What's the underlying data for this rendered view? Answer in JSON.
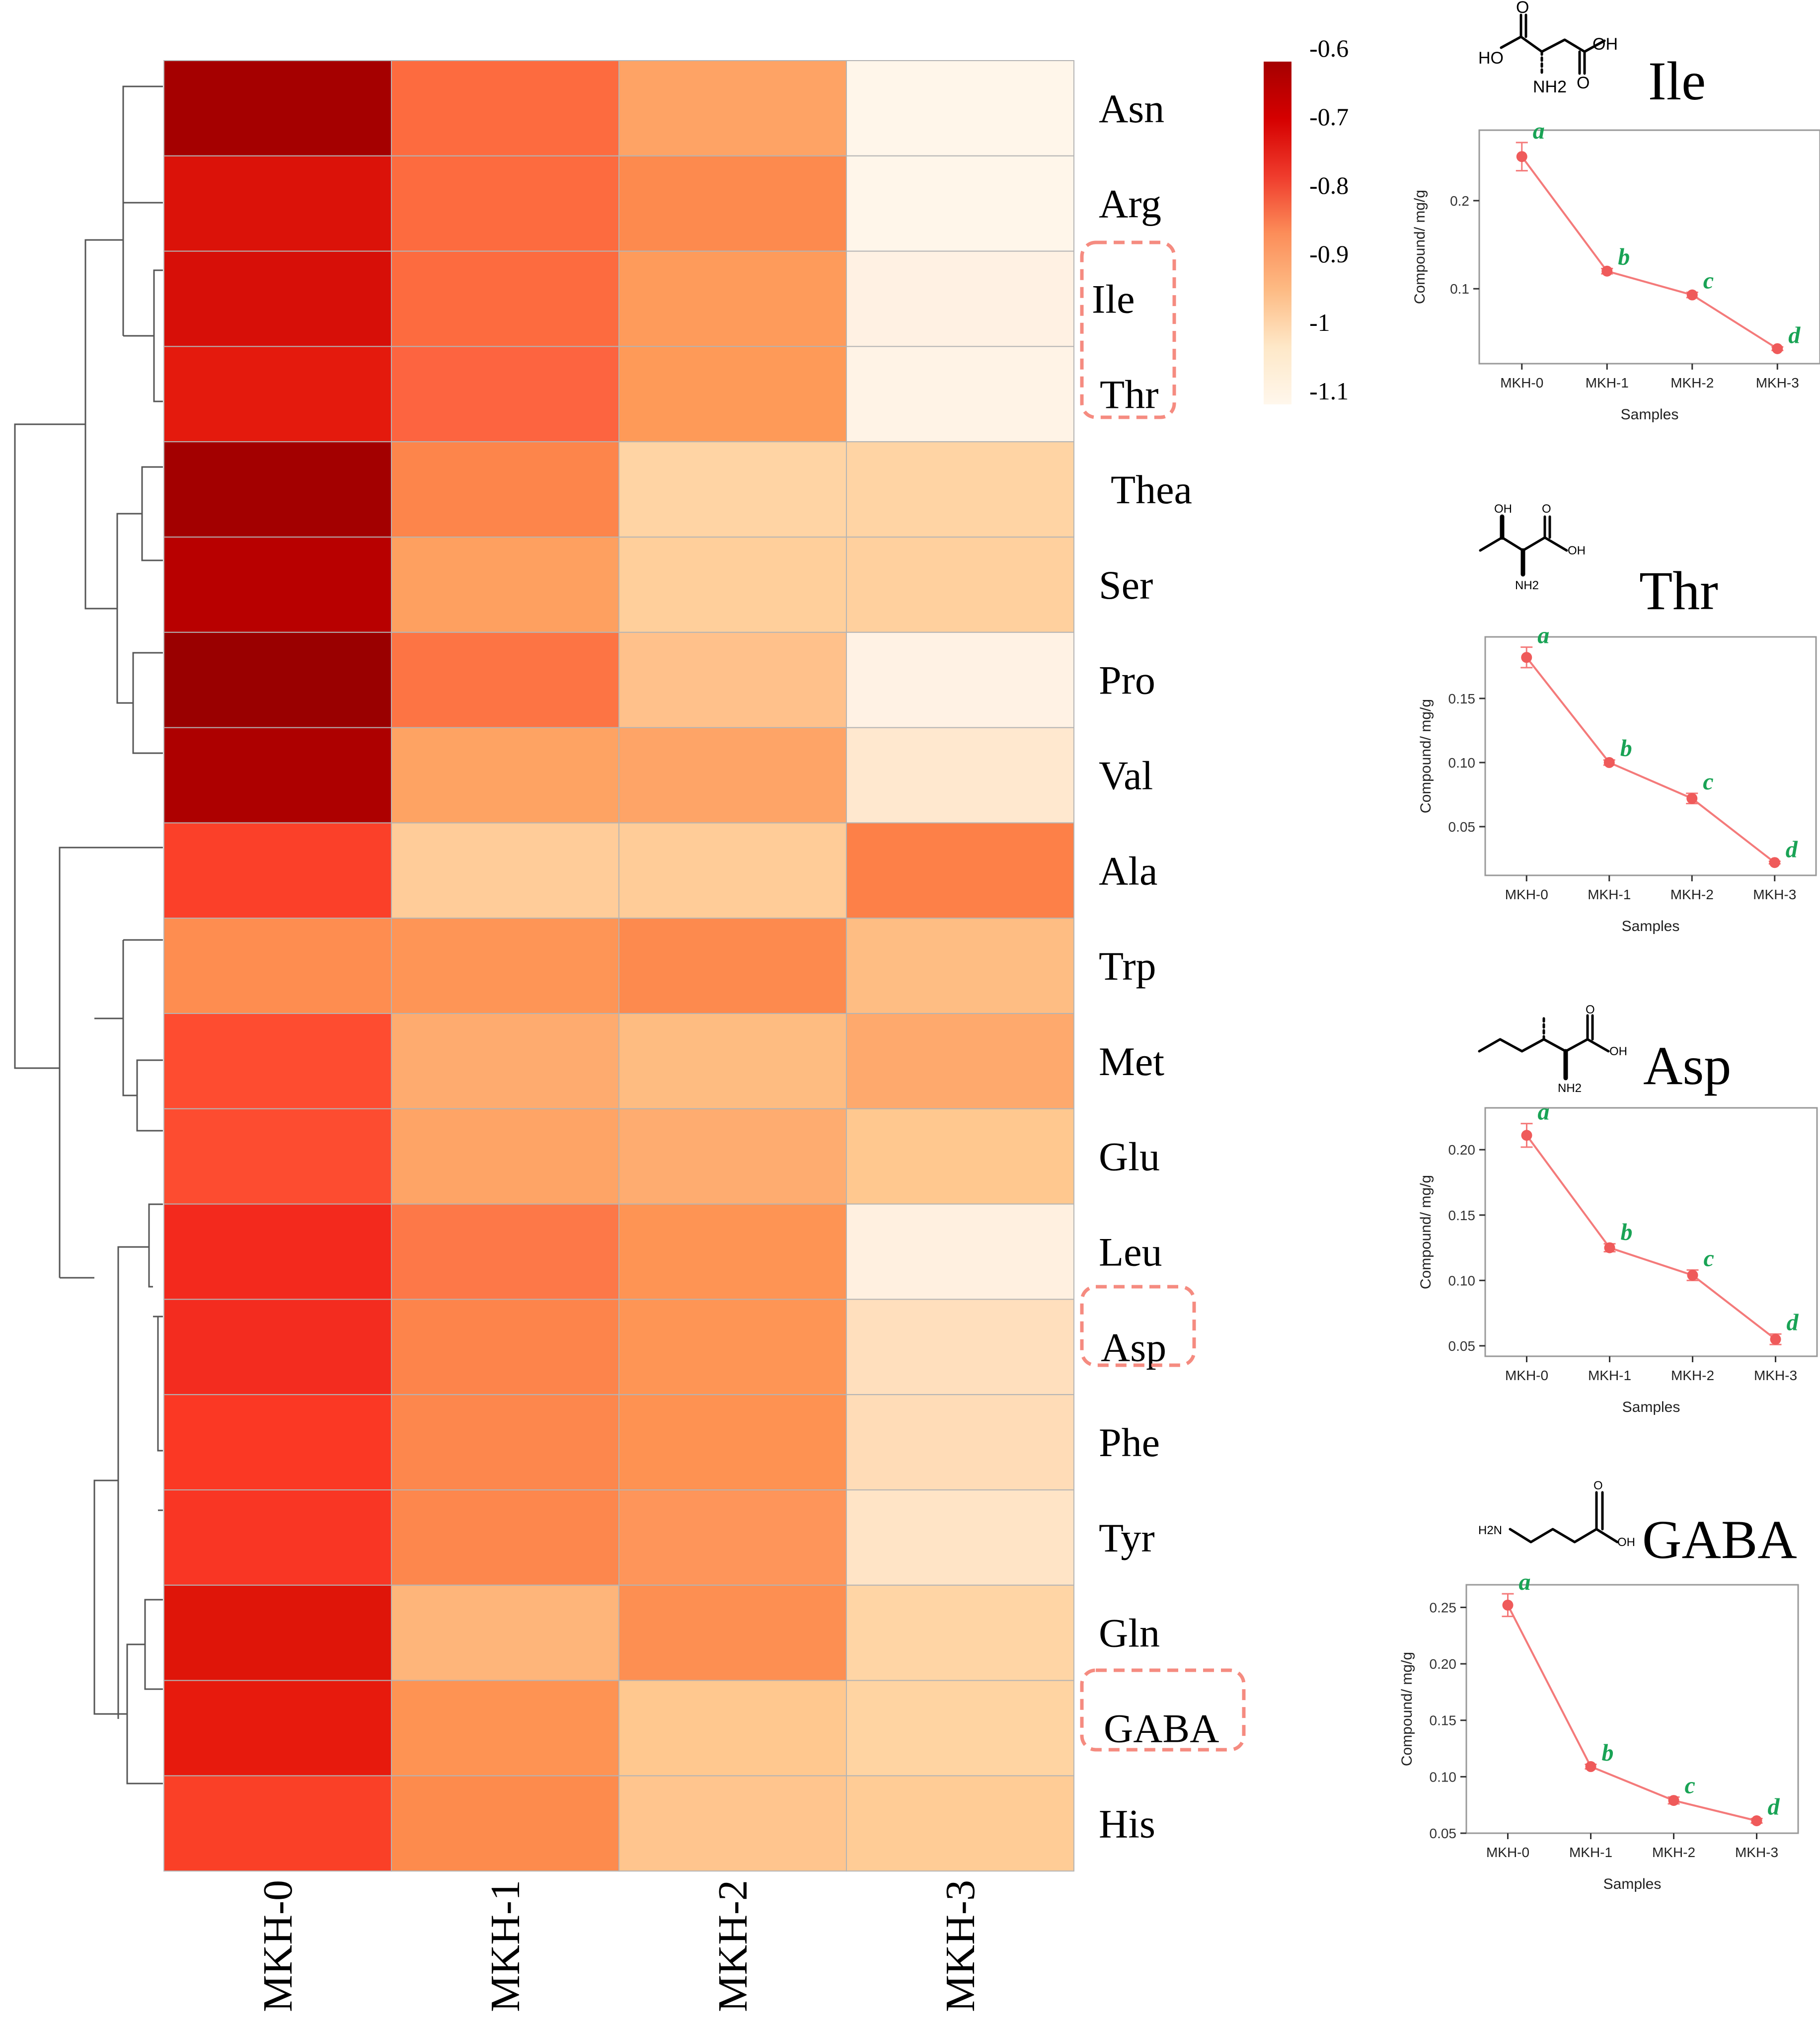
{
  "heatmap": {
    "rows": [
      "Asn",
      "Arg",
      "Ile",
      "Thr",
      "Thea",
      "Ser",
      "Pro",
      "Val",
      "Ala",
      "Trp",
      "Met",
      "Glu",
      "Leu",
      "Asp",
      "Phe",
      "Tyr",
      "Gln",
      "GABA",
      "His"
    ],
    "columns": [
      "MKH-0",
      "MKH-1",
      "MKH-2",
      "MKH-3"
    ],
    "cell_colors": [
      [
        "#a50000",
        "#fd6b3f",
        "#fea365",
        "#fff6ea"
      ],
      [
        "#db1209",
        "#fd6b3f",
        "#fd8a4e",
        "#fff6ea"
      ],
      [
        "#d70f08",
        "#fd6b3f",
        "#fe9b5b",
        "#fff1e3"
      ],
      [
        "#e41a0d",
        "#fd6440",
        "#fe9a58",
        "#fff3e6"
      ],
      [
        "#a30000",
        "#fd854b",
        "#ffd4a4",
        "#ffd4a4"
      ],
      [
        "#b80000",
        "#fea060",
        "#ffcf9b",
        "#ffd09e"
      ],
      [
        "#9a0000",
        "#fd7444",
        "#ffc18b",
        "#fff2e4"
      ],
      [
        "#ad0000",
        "#fea363",
        "#fea467",
        "#ffe8cf"
      ],
      [
        "#fb4029",
        "#ffcc99",
        "#ffcc98",
        "#fd8048"
      ],
      [
        "#fe8d50",
        "#fe9556",
        "#fd8a4e",
        "#febd83"
      ],
      [
        "#fe4c30",
        "#feab6f",
        "#febc81",
        "#fea96d"
      ],
      [
        "#fd4c30",
        "#fea466",
        "#feac70",
        "#ffc88f"
      ],
      [
        "#f3291d",
        "#fd7848",
        "#fe9454",
        "#fff0e0"
      ],
      [
        "#f32c1f",
        "#fd844b",
        "#fe9555",
        "#ffdfbd"
      ],
      [
        "#fb3824",
        "#fd874d",
        "#fe9252",
        "#ffdcb7"
      ],
      [
        "#f93624",
        "#fd874d",
        "#fe955a",
        "#ffe4c6"
      ],
      [
        "#df1509",
        "#feb57a",
        "#fd8f52",
        "#ffd5a5"
      ],
      [
        "#e71a0d",
        "#fe9353",
        "#ffc88f",
        "#ffd4a2"
      ],
      [
        "#fa4027",
        "#fd8b4d",
        "#ffc58e",
        "#ffcc96"
      ]
    ],
    "highlighted_rows": [
      "Ile",
      "Thr",
      "Asp",
      "GABA"
    ]
  },
  "colorbar": {
    "tick_labels": [
      "-0.6",
      "-0.7",
      "-0.8",
      "-0.9",
      "-1",
      "-1.1"
    ],
    "colors": [
      "#a50000",
      "#d50000",
      "#ef3b2c",
      "#fc8d59",
      "#fdbb84",
      "#fee8c8",
      "#fff7ec"
    ]
  },
  "chart_data": [
    {
      "type": "line",
      "title": "Ile",
      "xlabel": "Samples",
      "ylabel": "Compound/ mg/g",
      "categories": [
        "MKH-0",
        "MKH-1",
        "MKH-2",
        "MKH-3"
      ],
      "values": [
        0.25,
        0.12,
        0.093,
        0.032
      ],
      "errors": [
        0.016,
        0.003,
        0.003,
        0.002
      ],
      "letters": [
        "a",
        "b",
        "c",
        "d"
      ],
      "ylim": [
        0.015,
        0.28
      ],
      "yticks": [
        0.1,
        0.2
      ],
      "ytick_labels": [
        "0.1",
        "0.2"
      ]
    },
    {
      "type": "line",
      "title": "Thr",
      "xlabel": "Samples",
      "ylabel": "Compound/ mg/g",
      "categories": [
        "MKH-0",
        "MKH-1",
        "MKH-2",
        "MKH-3"
      ],
      "values": [
        0.182,
        0.1,
        0.072,
        0.022
      ],
      "errors": [
        0.008,
        0.002,
        0.004,
        0.001
      ],
      "letters": [
        "a",
        "b",
        "c",
        "d"
      ],
      "ylim": [
        0.012,
        0.198
      ],
      "yticks": [
        0.05,
        0.1,
        0.15
      ],
      "ytick_labels": [
        "0.05",
        "0.10",
        "0.15"
      ]
    },
    {
      "type": "line",
      "title": "Asp",
      "xlabel": "Samples",
      "ylabel": "Compound/ mg/g",
      "categories": [
        "MKH-0",
        "MKH-1",
        "MKH-2",
        "MKH-3"
      ],
      "values": [
        0.211,
        0.125,
        0.104,
        0.055
      ],
      "errors": [
        0.009,
        0.003,
        0.004,
        0.004
      ],
      "letters": [
        "a",
        "b",
        "c",
        "d"
      ],
      "ylim": [
        0.042,
        0.232
      ],
      "yticks": [
        0.05,
        0.1,
        0.15,
        0.2
      ],
      "ytick_labels": [
        "0.05",
        "0.10",
        "0.15",
        "0.20"
      ]
    },
    {
      "type": "line",
      "title": "GABA",
      "xlabel": "Samples",
      "ylabel": "Compound/ mg/g",
      "categories": [
        "MKH-0",
        "MKH-1",
        "MKH-2",
        "MKH-3"
      ],
      "values": [
        0.252,
        0.109,
        0.079,
        0.061
      ],
      "errors": [
        0.01,
        0.002,
        0.003,
        0.002
      ],
      "letters": [
        "a",
        "b",
        "c",
        "d"
      ],
      "ylim": [
        0.05,
        0.27
      ],
      "yticks": [
        0.05,
        0.1,
        0.15,
        0.2,
        0.25
      ],
      "ytick_labels": [
        "0.05",
        "0.10",
        "0.15",
        "0.20",
        "0.25"
      ]
    }
  ],
  "structures": {
    "ile_panel": {
      "labels": [
        "HO",
        "OH",
        "O",
        "O",
        "NH2"
      ]
    },
    "thr_panel": {
      "labels": [
        "OH",
        "O",
        "OH",
        "NH2"
      ]
    },
    "asp_panel": {
      "labels": [
        "O",
        "OH",
        "NH2"
      ]
    },
    "gaba_panel": {
      "labels": [
        "H2N",
        "O",
        "OH"
      ]
    }
  },
  "colors": {
    "line": "#f47a7a",
    "point": "#ef5a5a",
    "letter": "#19a355",
    "highlight_box": "#f58b80",
    "grid": "#b4b4b4"
  }
}
